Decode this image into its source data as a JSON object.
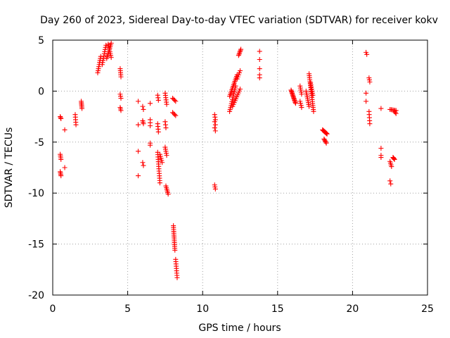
{
  "chart_data": {
    "type": "scatter",
    "title": "Day 260 of 2023, Sidereal Day-to-day VTEC variation (SDTVAR) for receiver kokv",
    "xlabel": "GPS time / hours",
    "ylabel": "SDTVAR / TECUs",
    "xlim": [
      0,
      25
    ],
    "ylim": [
      -20,
      5
    ],
    "xticks": [
      0,
      5,
      10,
      15,
      20,
      25
    ],
    "yticks": [
      -20,
      -15,
      -10,
      -5,
      0,
      5
    ],
    "xtick_labels": [
      "0",
      "5",
      "10",
      "15",
      "20",
      "25"
    ],
    "ytick_labels": [
      "-20",
      "-15",
      "-10",
      "-5",
      "0",
      "5"
    ],
    "grid": true,
    "marker": "+",
    "color": "#ff0000",
    "series": [
      {
        "name": "SDTVAR",
        "segments": [
          {
            "x0": 0.5,
            "y0": -2.5,
            "x1": 0.55,
            "y1": -2.7,
            "n": 3
          },
          {
            "x0": 0.5,
            "y0": -6.2,
            "x1": 0.55,
            "y1": -6.7,
            "n": 4
          },
          {
            "x0": 0.5,
            "y0": -7.9,
            "x1": 0.55,
            "y1": -8.3,
            "n": 4
          },
          {
            "x0": 0.8,
            "y0": -3.8,
            "x1": 0.8,
            "y1": -3.8,
            "n": 1
          },
          {
            "x0": 0.8,
            "y0": -7.5,
            "x1": 0.8,
            "y1": -7.5,
            "n": 1
          },
          {
            "x0": 1.5,
            "y0": -2.3,
            "x1": 1.55,
            "y1": -3.3,
            "n": 5
          },
          {
            "x0": 1.9,
            "y0": -1.0,
            "x1": 1.95,
            "y1": -1.7,
            "n": 6
          },
          {
            "x0": 3.0,
            "y0": 1.8,
            "x1": 3.2,
            "y1": 3.4,
            "n": 9
          },
          {
            "x0": 3.3,
            "y0": 2.6,
            "x1": 3.55,
            "y1": 4.5,
            "n": 10
          },
          {
            "x0": 3.6,
            "y0": 3.2,
            "x1": 3.9,
            "y1": 4.7,
            "n": 10
          },
          {
            "x0": 3.7,
            "y0": 4.6,
            "x1": 3.9,
            "y1": 3.3,
            "n": 8
          },
          {
            "x0": 4.5,
            "y0": 2.2,
            "x1": 4.55,
            "y1": 1.4,
            "n": 5
          },
          {
            "x0": 4.5,
            "y0": -0.3,
            "x1": 4.55,
            "y1": -0.7,
            "n": 3
          },
          {
            "x0": 4.5,
            "y0": -1.6,
            "x1": 4.55,
            "y1": -1.9,
            "n": 3
          },
          {
            "x0": 5.7,
            "y0": -1.0,
            "x1": 5.7,
            "y1": -1.0,
            "n": 1
          },
          {
            "x0": 5.7,
            "y0": -3.3,
            "x1": 5.7,
            "y1": -3.3,
            "n": 1
          },
          {
            "x0": 5.7,
            "y0": -5.9,
            "x1": 5.7,
            "y1": -5.9,
            "n": 1
          },
          {
            "x0": 5.7,
            "y0": -8.3,
            "x1": 5.7,
            "y1": -8.3,
            "n": 1
          },
          {
            "x0": 6.0,
            "y0": -1.5,
            "x1": 6.05,
            "y1": -1.8,
            "n": 2
          },
          {
            "x0": 6.0,
            "y0": -2.9,
            "x1": 6.05,
            "y1": -3.2,
            "n": 3
          },
          {
            "x0": 6.0,
            "y0": -7.0,
            "x1": 6.05,
            "y1": -7.3,
            "n": 2
          },
          {
            "x0": 6.5,
            "y0": -1.2,
            "x1": 6.5,
            "y1": -1.2,
            "n": 1
          },
          {
            "x0": 6.5,
            "y0": -2.8,
            "x1": 6.5,
            "y1": -3.4,
            "n": 3
          },
          {
            "x0": 6.5,
            "y0": -5.1,
            "x1": 6.5,
            "y1": -5.3,
            "n": 2
          },
          {
            "x0": 7.0,
            "y0": -0.4,
            "x1": 7.05,
            "y1": -0.9,
            "n": 3
          },
          {
            "x0": 7.0,
            "y0": -3.2,
            "x1": 7.05,
            "y1": -4.0,
            "n": 4
          },
          {
            "x0": 7.0,
            "y0": -6.0,
            "x1": 7.15,
            "y1": -9.0,
            "n": 14
          },
          {
            "x0": 7.15,
            "y0": -6.2,
            "x1": 7.3,
            "y1": -7.0,
            "n": 5
          },
          {
            "x0": 7.5,
            "y0": -0.2,
            "x1": 7.6,
            "y1": -1.3,
            "n": 6
          },
          {
            "x0": 7.5,
            "y0": -3.0,
            "x1": 7.55,
            "y1": -3.6,
            "n": 3
          },
          {
            "x0": 7.5,
            "y0": -5.5,
            "x1": 7.6,
            "y1": -6.3,
            "n": 5
          },
          {
            "x0": 7.55,
            "y0": -9.3,
            "x1": 7.7,
            "y1": -10.1,
            "n": 6
          },
          {
            "x0": 8.0,
            "y0": -0.7,
            "x1": 8.2,
            "y1": -1.0,
            "n": 4
          },
          {
            "x0": 8.0,
            "y0": -2.1,
            "x1": 8.2,
            "y1": -2.4,
            "n": 4
          },
          {
            "x0": 8.05,
            "y0": -13.2,
            "x1": 8.15,
            "y1": -15.6,
            "n": 14
          },
          {
            "x0": 8.2,
            "y0": -16.5,
            "x1": 8.3,
            "y1": -18.3,
            "n": 9
          },
          {
            "x0": 10.8,
            "y0": -2.3,
            "x1": 10.85,
            "y1": -2.8,
            "n": 3
          },
          {
            "x0": 10.8,
            "y0": -3.0,
            "x1": 10.85,
            "y1": -3.3,
            "n": 2
          },
          {
            "x0": 10.8,
            "y0": -3.6,
            "x1": 10.85,
            "y1": -3.9,
            "n": 2
          },
          {
            "x0": 10.8,
            "y0": -9.2,
            "x1": 10.85,
            "y1": -9.6,
            "n": 3
          },
          {
            "x0": 11.8,
            "y0": -2.0,
            "x1": 12.2,
            "y1": 0.5,
            "n": 14
          },
          {
            "x0": 11.8,
            "y0": -0.5,
            "x1": 12.3,
            "y1": 1.6,
            "n": 14
          },
          {
            "x0": 12.0,
            "y0": -1.5,
            "x1": 12.5,
            "y1": 0.2,
            "n": 10
          },
          {
            "x0": 12.3,
            "y0": 1.2,
            "x1": 12.5,
            "y1": 2.0,
            "n": 5
          },
          {
            "x0": 12.4,
            "y0": 3.5,
            "x1": 12.55,
            "y1": 4.1,
            "n": 6
          },
          {
            "x0": 13.8,
            "y0": 3.9,
            "x1": 13.8,
            "y1": 3.9,
            "n": 1
          },
          {
            "x0": 13.8,
            "y0": 3.1,
            "x1": 13.8,
            "y1": 3.1,
            "n": 1
          },
          {
            "x0": 13.8,
            "y0": 2.2,
            "x1": 13.8,
            "y1": 2.2,
            "n": 1
          },
          {
            "x0": 13.8,
            "y0": 1.3,
            "x1": 13.8,
            "y1": 1.6,
            "n": 2
          },
          {
            "x0": 15.9,
            "y0": 0.1,
            "x1": 16.2,
            "y1": -1.2,
            "n": 14
          },
          {
            "x0": 16.5,
            "y0": 0.5,
            "x1": 16.6,
            "y1": -0.3,
            "n": 5
          },
          {
            "x0": 16.5,
            "y0": -1.0,
            "x1": 16.6,
            "y1": -1.6,
            "n": 4
          },
          {
            "x0": 16.9,
            "y0": 0.0,
            "x1": 17.1,
            "y1": -1.5,
            "n": 9
          },
          {
            "x0": 17.1,
            "y0": 1.7,
            "x1": 17.4,
            "y1": -2.0,
            "n": 20
          },
          {
            "x0": 17.2,
            "y0": 0.8,
            "x1": 17.35,
            "y1": -0.4,
            "n": 7
          },
          {
            "x0": 18.0,
            "y0": -3.8,
            "x1": 18.3,
            "y1": -4.2,
            "n": 10
          },
          {
            "x0": 18.1,
            "y0": -4.7,
            "x1": 18.25,
            "y1": -5.1,
            "n": 5
          },
          {
            "x0": 20.9,
            "y0": 3.8,
            "x1": 20.95,
            "y1": 3.6,
            "n": 2
          },
          {
            "x0": 20.9,
            "y0": -0.2,
            "x1": 20.9,
            "y1": -0.2,
            "n": 1
          },
          {
            "x0": 20.9,
            "y0": -1.0,
            "x1": 20.9,
            "y1": -1.0,
            "n": 1
          },
          {
            "x0": 21.1,
            "y0": 1.3,
            "x1": 21.15,
            "y1": 0.9,
            "n": 3
          },
          {
            "x0": 21.1,
            "y0": -2.0,
            "x1": 21.15,
            "y1": -3.2,
            "n": 5
          },
          {
            "x0": 21.9,
            "y0": -1.7,
            "x1": 21.9,
            "y1": -1.7,
            "n": 1
          },
          {
            "x0": 21.9,
            "y0": -5.6,
            "x1": 21.9,
            "y1": -5.6,
            "n": 1
          },
          {
            "x0": 21.9,
            "y0": -6.3,
            "x1": 21.9,
            "y1": -6.5,
            "n": 2
          },
          {
            "x0": 22.5,
            "y0": -6.9,
            "x1": 22.6,
            "y1": -7.4,
            "n": 4
          },
          {
            "x0": 22.5,
            "y0": -1.8,
            "x1": 22.9,
            "y1": -1.9,
            "n": 6
          },
          {
            "x0": 22.5,
            "y0": -8.8,
            "x1": 22.55,
            "y1": -9.1,
            "n": 2
          },
          {
            "x0": 22.8,
            "y0": -2.0,
            "x1": 22.9,
            "y1": -2.2,
            "n": 3
          },
          {
            "x0": 22.7,
            "y0": -6.5,
            "x1": 22.8,
            "y1": -6.7,
            "n": 4
          }
        ]
      }
    ]
  }
}
